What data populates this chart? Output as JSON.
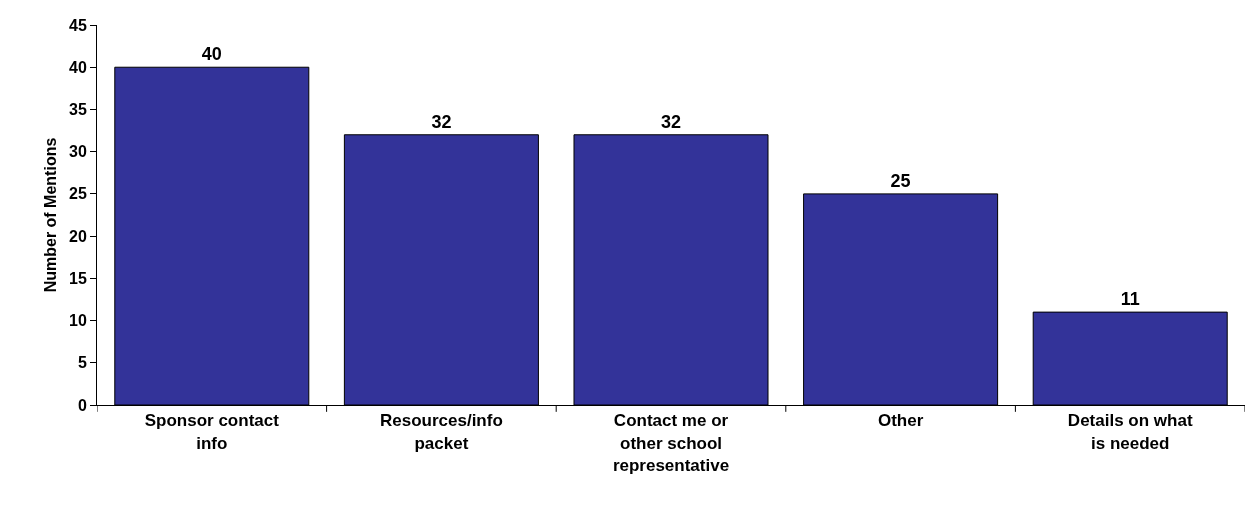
{
  "chart_data": {
    "type": "bar",
    "ylabel": "Number of Mentions",
    "categories": [
      "Sponsor contact info",
      "Resources/info packet",
      "Contact me or other school representative",
      "Other",
      "Details on what is needed"
    ],
    "values": [
      40,
      32,
      32,
      25,
      11
    ],
    "color": "#333399",
    "ylim": [
      0,
      45
    ],
    "yticks": [
      0,
      5,
      10,
      15,
      20,
      25,
      30,
      35,
      40,
      45
    ],
    "data_labels": true,
    "legend": false
  }
}
